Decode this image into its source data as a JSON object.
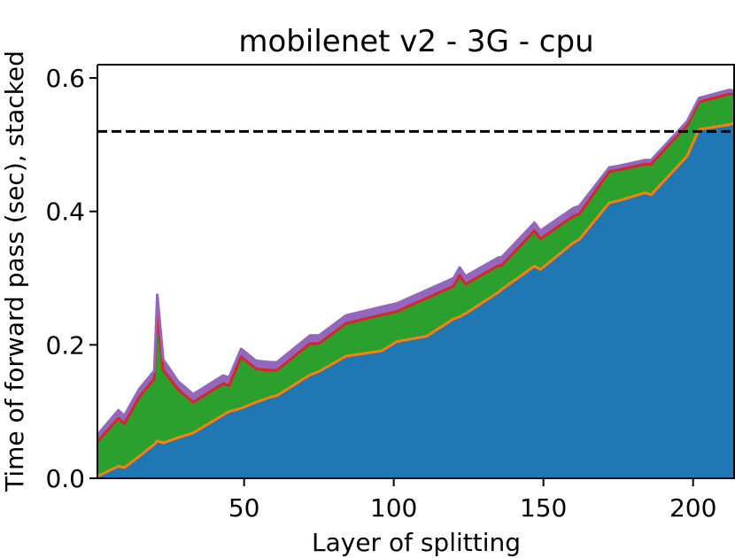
{
  "chart_data": {
    "type": "area",
    "title": "mobilenet v2  -  3G  -  cpu",
    "xlabel": "Layer of splitting",
    "ylabel": "Time of forward pass (sec), stacked",
    "xlim": [
      1,
      214
    ],
    "ylim": [
      0,
      0.62
    ],
    "xticks": [
      50,
      100,
      150,
      200
    ],
    "xtick_labels": [
      "50",
      "100",
      "150",
      "200"
    ],
    "yticks": [
      0.0,
      0.2,
      0.4,
      0.6
    ],
    "ytick_labels": [
      "0.0",
      "0.2",
      "0.4",
      "0.6"
    ],
    "grid": false,
    "x": [
      1,
      8,
      10,
      15,
      20,
      21,
      23,
      28,
      33,
      43,
      45,
      49,
      54,
      59,
      61,
      72,
      75,
      84,
      96,
      101,
      111,
      120,
      122,
      124,
      135,
      136,
      147,
      149,
      160,
      162,
      172,
      175,
      184,
      186,
      198,
      202,
      212,
      214
    ],
    "stack_colors": [
      "#1f77b4",
      "#ff7f0e",
      "#2ca02c",
      "#d62728",
      "#9467bd"
    ],
    "series": [
      {
        "values": [
          0.0,
          0.015,
          0.013,
          0.03,
          0.048,
          0.053,
          0.05,
          0.058,
          0.065,
          0.092,
          0.097,
          0.102,
          0.111,
          0.119,
          0.121,
          0.152,
          0.157,
          0.18,
          0.188,
          0.202,
          0.21,
          0.236,
          0.239,
          0.244,
          0.276,
          0.28,
          0.315,
          0.31,
          0.35,
          0.355,
          0.41,
          0.413,
          0.425,
          0.422,
          0.48,
          0.52,
          0.527,
          0.53
        ],
        "color": "#1f77b4"
      },
      {
        "values": [
          0.003,
          0.003,
          0.003,
          0.003,
          0.003,
          0.003,
          0.003,
          0.003,
          0.003,
          0.003,
          0.003,
          0.003,
          0.003,
          0.003,
          0.003,
          0.003,
          0.003,
          0.003,
          0.003,
          0.003,
          0.003,
          0.003,
          0.003,
          0.003,
          0.003,
          0.003,
          0.003,
          0.003,
          0.003,
          0.003,
          0.003,
          0.003,
          0.003,
          0.003,
          0.003,
          0.003,
          0.003,
          0.003
        ],
        "color": "#ff7f0e"
      },
      {
        "values": [
          0.048,
          0.068,
          0.062,
          0.085,
          0.094,
          0.182,
          0.105,
          0.068,
          0.042,
          0.043,
          0.035,
          0.073,
          0.046,
          0.036,
          0.034,
          0.043,
          0.038,
          0.045,
          0.05,
          0.041,
          0.053,
          0.045,
          0.058,
          0.04,
          0.036,
          0.032,
          0.049,
          0.042,
          0.036,
          0.034,
          0.043,
          0.042,
          0.039,
          0.042,
          0.042,
          0.037,
          0.042,
          0.038
        ],
        "color": "#2ca02c"
      },
      {
        "values": [
          0.004,
          0.004,
          0.004,
          0.004,
          0.004,
          0.004,
          0.004,
          0.004,
          0.004,
          0.004,
          0.004,
          0.004,
          0.004,
          0.004,
          0.004,
          0.004,
          0.004,
          0.004,
          0.004,
          0.004,
          0.004,
          0.004,
          0.004,
          0.004,
          0.004,
          0.004,
          0.004,
          0.004,
          0.004,
          0.004,
          0.004,
          0.004,
          0.004,
          0.004,
          0.004,
          0.004,
          0.004,
          0.004
        ],
        "color": "#d62728"
      },
      {
        "values": [
          0.01,
          0.012,
          0.012,
          0.012,
          0.012,
          0.033,
          0.016,
          0.012,
          0.012,
          0.012,
          0.012,
          0.012,
          0.012,
          0.012,
          0.012,
          0.012,
          0.012,
          0.012,
          0.012,
          0.012,
          0.012,
          0.012,
          0.012,
          0.012,
          0.012,
          0.012,
          0.012,
          0.012,
          0.012,
          0.012,
          0.006,
          0.006,
          0.006,
          0.006,
          0.006,
          0.006,
          0.006,
          0.006
        ],
        "color": "#9467bd"
      }
    ],
    "reference_line": {
      "y": 0.52,
      "style": "dashed",
      "color": "#000000"
    },
    "colors": {
      "tick_color": "#000000",
      "spine_color": "#000000"
    }
  }
}
